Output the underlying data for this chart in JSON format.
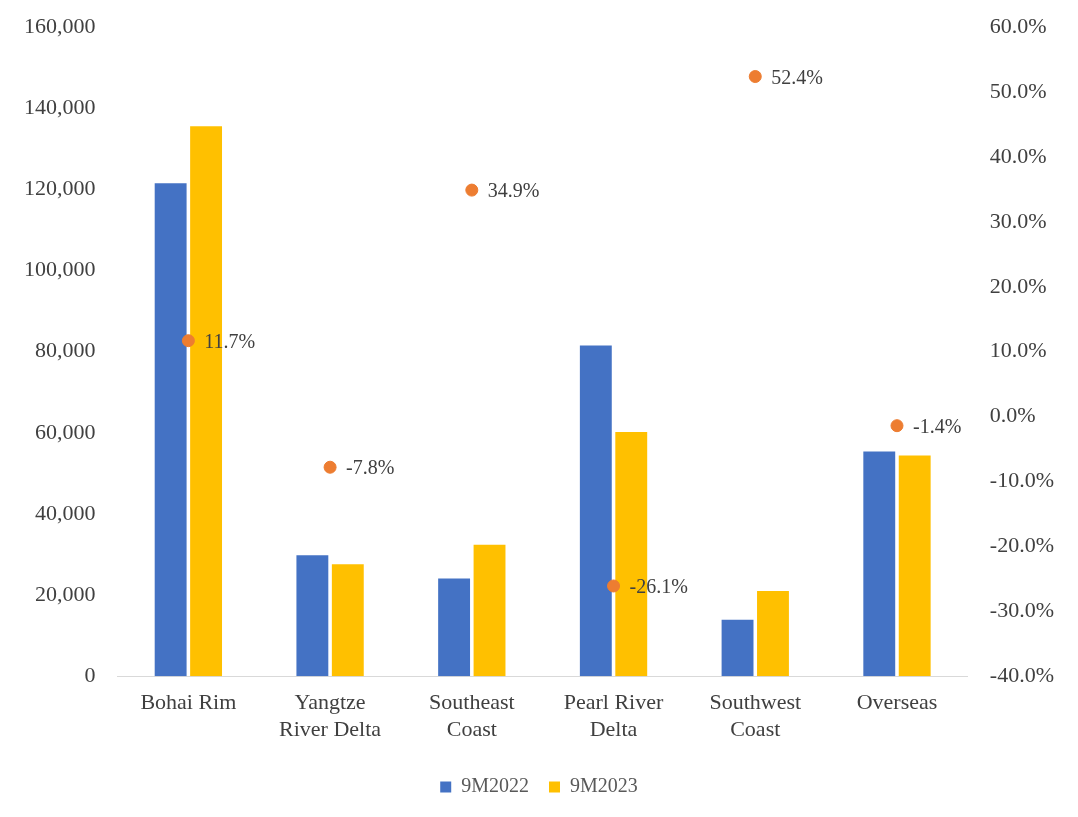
{
  "chart_data": {
    "type": "bar",
    "categories": [
      "Bohai Rim",
      "Yangtze River Delta",
      "Southeast Coast",
      "Pearl River Delta",
      "Southwest Coast",
      "Overseas"
    ],
    "series": [
      {
        "name": "9M2022",
        "color": "#4472c4",
        "values": [
          121500,
          29800,
          24100,
          81500,
          13900,
          55400
        ]
      },
      {
        "name": "9M2023",
        "color": "#ffc000",
        "values": [
          135600,
          27600,
          32400,
          60200,
          21000,
          54400
        ]
      },
      {
        "type": "scatter",
        "axis": "y2",
        "color": "#ed7d31",
        "x": [
          "Bohai Rim",
          "Yangtze River Delta",
          "Southeast Coast",
          "Pearl River Delta",
          "Southwest Coast",
          "Overseas"
        ],
        "values": [
          11.7,
          -7.8,
          34.9,
          -26.1,
          52.4,
          -1.4
        ],
        "value_labels": [
          "11.7%",
          "-7.8%",
          "34.9%",
          "-26.1%",
          "52.4%",
          "-1.4%"
        ]
      }
    ],
    "ylim": [
      0,
      160000
    ],
    "yticks": [
      {
        "value": 0,
        "label": "0"
      },
      {
        "value": 20000,
        "label": "20,000"
      },
      {
        "value": 40000,
        "label": "40,000"
      },
      {
        "value": 60000,
        "label": "60,000"
      },
      {
        "value": 80000,
        "label": "80,000"
      },
      {
        "value": 100000,
        "label": "100,000"
      },
      {
        "value": 120000,
        "label": "120,000"
      },
      {
        "value": 140000,
        "label": "140,000"
      },
      {
        "value": 160000,
        "label": "160,000"
      }
    ],
    "y2lim": [
      -40,
      60
    ],
    "y2ticks": [
      {
        "value": -40,
        "label": "-40.0%"
      },
      {
        "value": -30,
        "label": "-30.0%"
      },
      {
        "value": -20,
        "label": "-20.0%"
      },
      {
        "value": -10,
        "label": "-10.0%"
      },
      {
        "value": 0,
        "label": "0.0%"
      },
      {
        "value": 10,
        "label": "10.0%"
      },
      {
        "value": 20,
        "label": "20.0%"
      },
      {
        "value": 30,
        "label": "30.0%"
      },
      {
        "value": 40,
        "label": "40.0%"
      },
      {
        "value": 50,
        "label": "50.0%"
      },
      {
        "value": 60,
        "label": "60.0%"
      }
    ],
    "grid": false,
    "legend": "bottom",
    "marker": "circle"
  }
}
